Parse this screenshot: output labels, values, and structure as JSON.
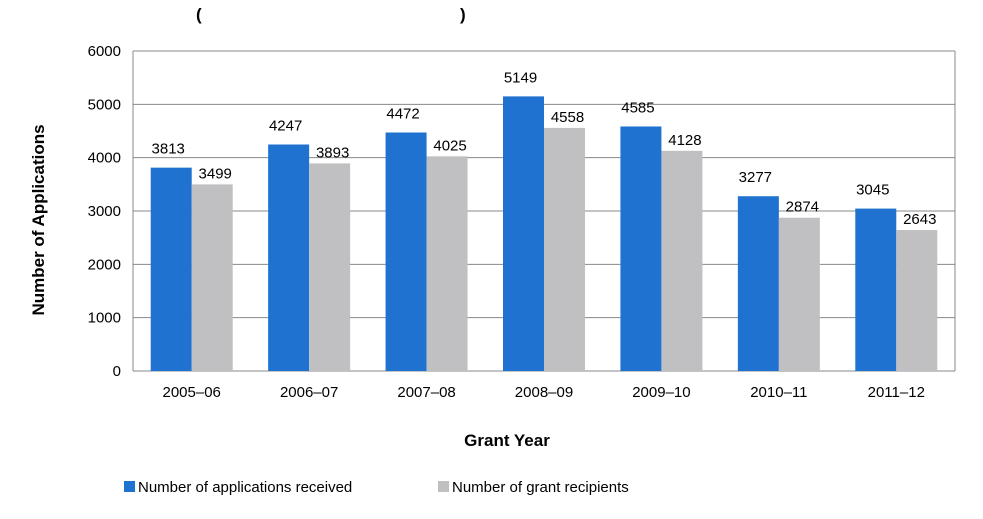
{
  "chart_data": {
    "type": "bar",
    "title": "",
    "xlabel": "Grant Year",
    "ylabel": "Number of Applications",
    "ylim": [
      0,
      6000
    ],
    "yticks": [
      0,
      1000,
      2000,
      3000,
      4000,
      5000,
      6000
    ],
    "grid": true,
    "legend_position": "bottom-left",
    "categories": [
      "2005–06",
      "2006–07",
      "2007–08",
      "2008–09",
      "2009–10",
      "2010–11",
      "2011–12"
    ],
    "series": [
      {
        "name": "Number of applications received",
        "color": "#1f72d0",
        "values": [
          3813,
          4247,
          4472,
          5149,
          4585,
          3277,
          3045
        ]
      },
      {
        "name": "Number of grant recipients",
        "color": "#c0c0c2",
        "values": [
          3499,
          3893,
          4025,
          4558,
          4128,
          2874,
          2643
        ]
      }
    ],
    "gridline_color": "#888888"
  }
}
